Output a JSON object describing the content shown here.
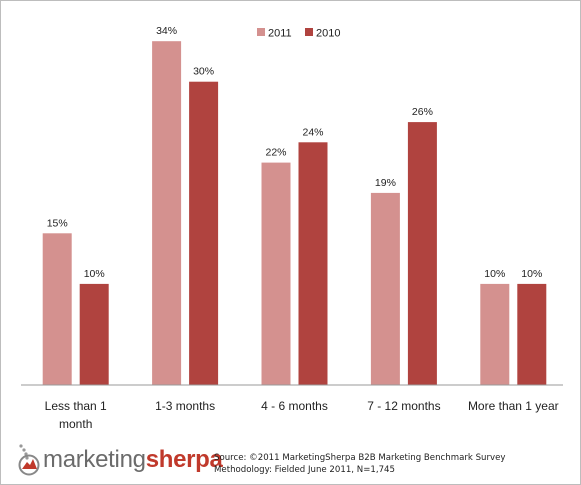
{
  "chart_data": {
    "type": "bar",
    "title": "",
    "xlabel": "",
    "ylabel": "",
    "ylim": [
      0,
      36
    ],
    "grid": false,
    "legend_position": "top-center",
    "categories": [
      "Less than 1 month",
      "1-3 months",
      "4 - 6 months",
      "7 - 12 months",
      "More than 1 year"
    ],
    "series": [
      {
        "name": "2011",
        "values": [
          15,
          34,
          22,
          19,
          10
        ],
        "color": "#d4918f"
      },
      {
        "name": "2010",
        "values": [
          10,
          30,
          24,
          26,
          10
        ],
        "color": "#b0433f"
      }
    ],
    "value_suffix": "%"
  },
  "footer": {
    "logo_part1": "marketing",
    "logo_part2": "sherpa",
    "source_line1": "Source: ©2011 MarketingSherpa B2B Marketing Benchmark Survey",
    "source_line2": "Methodology: Fielded June 2011, N=1,745"
  },
  "colors": {
    "logo_gray": "#6b6b6b",
    "logo_red": "#c0392b"
  },
  "icons": {
    "logo": "marketingsherpa-logo-mark"
  }
}
